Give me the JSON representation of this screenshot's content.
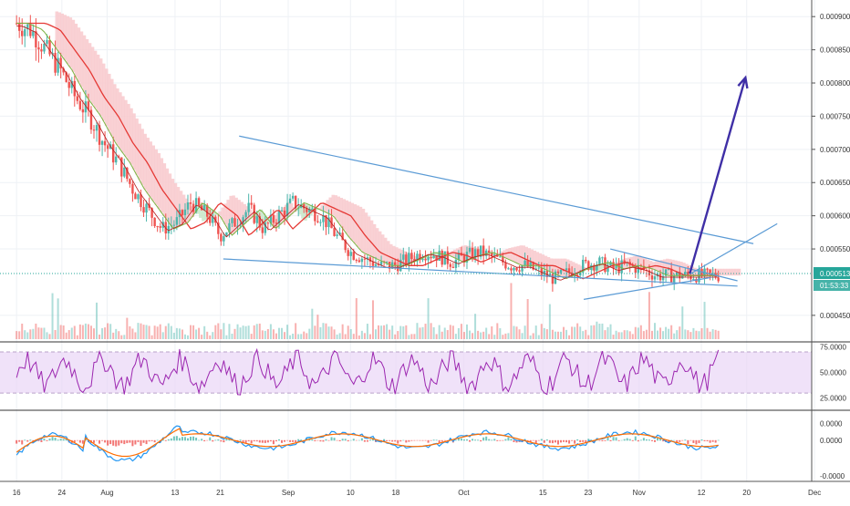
{
  "chart_data": [
    {
      "type": "candlestick",
      "pane": "price",
      "title": "",
      "ylim": [
        0.00041,
        0.000925
      ],
      "y_ticks": [
        "0.000900",
        "0.000850",
        "0.000800",
        "0.000750",
        "0.000700",
        "0.000650",
        "0.000600",
        "0.000550",
        "0.000513",
        "0.000450"
      ],
      "current_price": "0.000513",
      "countdown": "01:53:33",
      "price_series": {
        "t": [
          0,
          5,
          10,
          15,
          20,
          25,
          30,
          35,
          40,
          45,
          50,
          55,
          60,
          66,
          70,
          75,
          80,
          85,
          90,
          95,
          100,
          105,
          110,
          115,
          120,
          125,
          130,
          135,
          140,
          145,
          150,
          155,
          160,
          165,
          170,
          175,
          180,
          185,
          190,
          195,
          200,
          205,
          210,
          215,
          220
        ],
        "close": [
          0.00089,
          0.00088,
          0.00085,
          0.00082,
          0.00078,
          0.00075,
          0.00071,
          0.00068,
          0.00064,
          0.00061,
          0.00058,
          0.00059,
          0.00062,
          0.0006,
          0.00057,
          0.00059,
          0.00061,
          0.00058,
          0.0006,
          0.00062,
          0.00061,
          0.0006,
          0.00057,
          0.000545,
          0.000535,
          0.000525,
          0.000525,
          0.000535,
          0.000545,
          0.00054,
          0.00053,
          0.00054,
          0.000545,
          0.000535,
          0.000525,
          0.000525,
          0.000515,
          0.000505,
          0.000515,
          0.000525,
          0.00053,
          0.00052,
          0.000525,
          0.00052,
          0.00051
        ]
      },
      "annotations": [
        {
          "kind": "line",
          "label": "descending-channel-upper",
          "start": {
            "t": 84,
            "v": 0.00072
          },
          "end": {
            "t": 278,
            "v": 0.000558
          }
        },
        {
          "kind": "line",
          "label": "descending-channel-lower",
          "start": {
            "t": 78,
            "v": 0.000535
          },
          "end": {
            "t": 272,
            "v": 0.000494
          }
        },
        {
          "kind": "line",
          "label": "triangle-upper",
          "start": {
            "t": 224,
            "v": 0.00055
          },
          "end": {
            "t": 272,
            "v": 0.000502
          }
        },
        {
          "kind": "line",
          "label": "triangle-lower",
          "start": {
            "t": 214,
            "v": 0.000474
          },
          "end": {
            "t": 262,
            "v": 0.000507
          }
        },
        {
          "kind": "line",
          "label": "breakout-trendline",
          "start": {
            "t": 254,
            "v": 0.000512
          },
          "end": {
            "t": 287,
            "v": 0.000588
          }
        },
        {
          "kind": "arrow",
          "label": "projection",
          "start": {
            "t": 254,
            "v": 0.000513
          },
          "end": {
            "t": 275,
            "v": 0.000808
          }
        }
      ]
    },
    {
      "type": "line",
      "pane": "rsi",
      "ylim": [
        15,
        78
      ],
      "y_ticks": [
        "75.0000",
        "50.0000",
        "25.0000"
      ],
      "bands": [
        70,
        30
      ],
      "values_desc": "RSI oscillates between ~22 and ~74 across the period"
    },
    {
      "type": "line",
      "pane": "macd",
      "ylim": [
        -2.2e-05,
        1.5e-05
      ],
      "y_ticks": [
        "0.0000",
        "0.0000",
        "-0.0000"
      ],
      "values_desc": "MACD and signal lines with histogram around zero"
    }
  ],
  "x_axis": {
    "ticks": [
      {
        "label": "16",
        "t": 0
      },
      {
        "label": "24",
        "t": 8
      },
      {
        "label": "Aug",
        "t": 16
      },
      {
        "label": "13",
        "t": 28
      },
      {
        "label": "21",
        "t": 36
      },
      {
        "label": "Sep",
        "t": 48
      },
      {
        "label": "10",
        "t": 59
      },
      {
        "label": "18",
        "t": 67
      },
      {
        "label": "Oct",
        "t": 79
      },
      {
        "label": "15",
        "t": 93
      },
      {
        "label": "23",
        "t": 101
      },
      {
        "label": "Nov",
        "t": 110
      },
      {
        "label": "12",
        "t": 121
      },
      {
        "label": "20",
        "t": 129
      },
      {
        "label": "Dec",
        "t": 141
      }
    ]
  },
  "colors": {
    "up": "#4db6ac",
    "down": "#ef5350",
    "channel": "#5b9bd5",
    "arrow": "#3f2fa6",
    "rsi": "#9c27b0",
    "rsi_band": "#e9d5f7",
    "macd": "#2196f3",
    "signal": "#ff6d00",
    "price_label": "#26a69a"
  }
}
